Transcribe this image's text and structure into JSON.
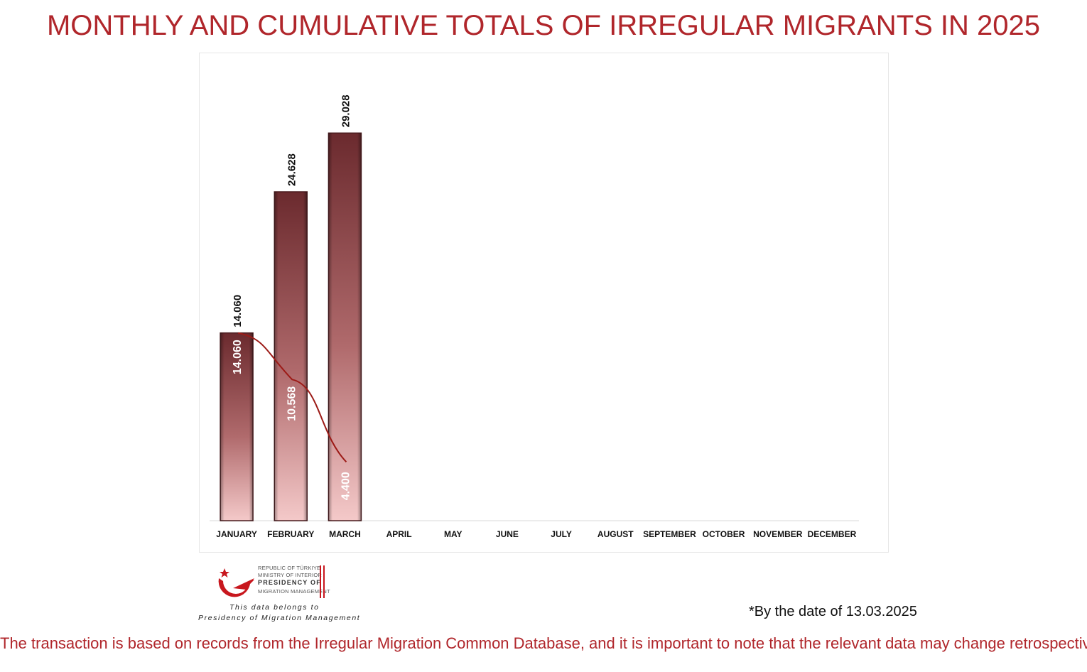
{
  "title": "MONTHLY AND CUMULATIVE TOTALS OF IRREGULAR MIGRANTS IN 2025",
  "chart_data": {
    "type": "bar",
    "categories": [
      "JANUARY",
      "FEBRUARY",
      "MARCH",
      "APRIL",
      "MAY",
      "JUNE",
      "JULY",
      "AUGUST",
      "SEPTEMBER",
      "OCTOBER",
      "NOVEMBER",
      "DECEMBER"
    ],
    "series": [
      {
        "values": [
          14060,
          24628,
          29028,
          null,
          null,
          null,
          null,
          null,
          null,
          null,
          null,
          null
        ],
        "labels": [
          "14.060",
          "24.628",
          "29.028",
          "",
          "",
          "",
          "",
          "",
          "",
          "",
          "",
          ""
        ]
      },
      {
        "type": "line",
        "values": [
          14060,
          10568,
          4400,
          null,
          null,
          null,
          null,
          null,
          null,
          null,
          null,
          null
        ],
        "labels": [
          "14.060",
          "10.568",
          "4.400",
          "",
          "",
          "",
          "",
          "",
          "",
          "",
          "",
          ""
        ]
      }
    ],
    "ylim": [
      0,
      35000
    ],
    "grid": false,
    "colors": {
      "bar_top": "#6b2a2e",
      "bar_bottom": "#f2c4c4",
      "line": "#9c1a16"
    }
  },
  "logo": {
    "line1": "REPUBLIC OF TÜRKIYE",
    "line2": "MINISTRY OF INTERIOR",
    "line3": "PRESIDENCY OF",
    "line4": "MIGRATION MANAGEMENT",
    "icon": "crescent-star-bird-icon",
    "accent": "#c8171e"
  },
  "owner_line1": "This data belongs to",
  "owner_line2": "Presidency of Migration Management",
  "date_note": "*By the date of 13.03.2025",
  "footer_note": "The transaction is based on records from the Irregular Migration Common Database, and it is important to note that the relevant data may change retrospectively."
}
